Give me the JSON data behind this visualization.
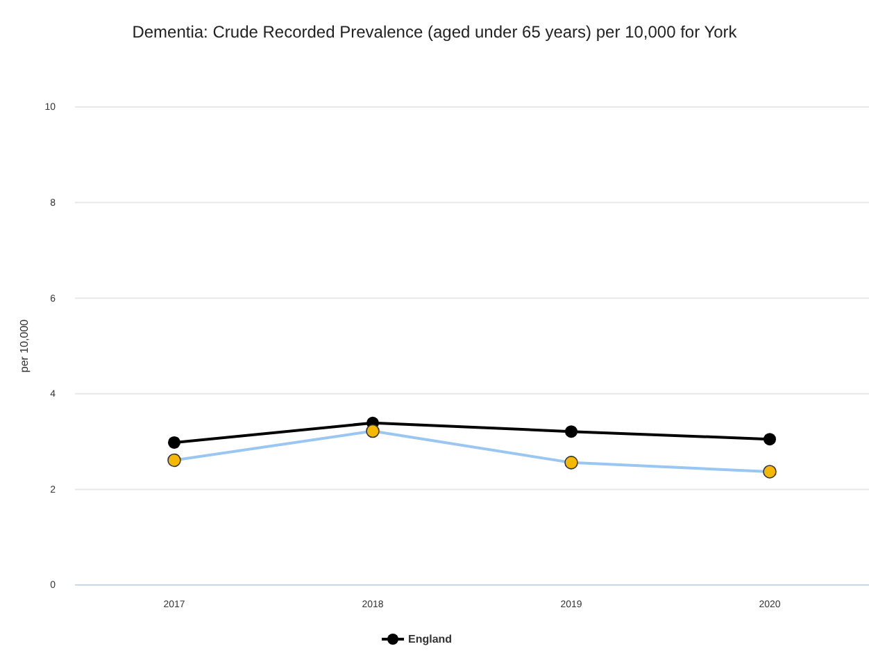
{
  "chart_data": {
    "type": "line",
    "title": "Dementia: Crude Recorded Prevalence (aged under 65 years) per 10,000 for York",
    "ylabel": "per 10,000",
    "categories": [
      "2017",
      "2018",
      "2019",
      "2020"
    ],
    "series": [
      {
        "name": "England",
        "color": "#000000",
        "values": [
          2.98,
          3.39,
          3.21,
          3.05
        ]
      },
      {
        "color": "#99c6f2",
        "colors": [
          "#f5b800",
          "#f5b800",
          "#f5b800",
          "#f5b800"
        ],
        "values": [
          2.61,
          3.22,
          2.56,
          2.37
        ]
      }
    ],
    "ylim": [
      0,
      10
    ],
    "yticks": [
      0,
      2,
      4,
      6,
      8,
      10
    ],
    "grid": "y",
    "legend": "bottom",
    "marker": "circle",
    "line_style": "solid"
  }
}
